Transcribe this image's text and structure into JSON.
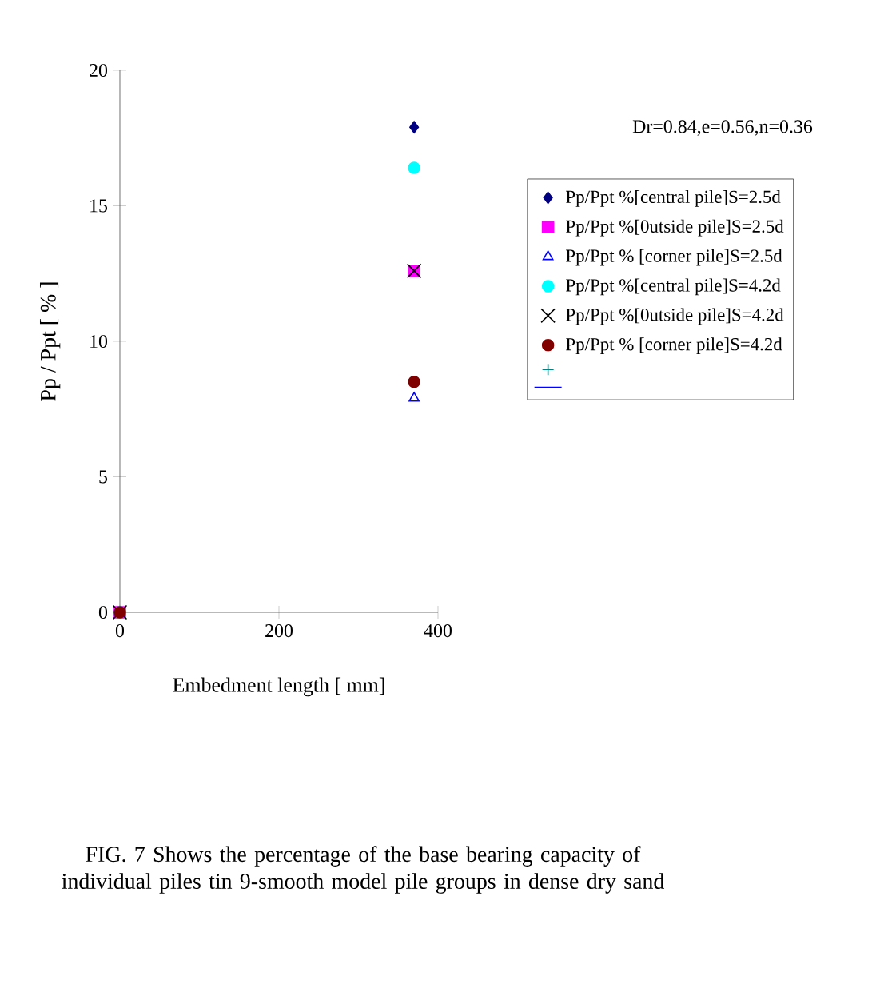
{
  "chart_data": {
    "type": "scatter",
    "xlabel": "Embedment length [ mm]",
    "ylabel": "Pp / Ppt [ % ]",
    "x": [
      0,
      370
    ],
    "series": [
      {
        "name": "Pp/Ppt %[central pile]S=2.5d",
        "color": "#000080",
        "marker": "diamond",
        "values": [
          null,
          17.9
        ]
      },
      {
        "name": "Pp/Ppt %[0utside pile]S=2.5d",
        "color": "#ff00ff",
        "marker": "square",
        "values": [
          0,
          12.6
        ]
      },
      {
        "name": "Pp/Ppt % [corner pile]S=2.5d",
        "color": "#0000ff",
        "marker": "triangle",
        "values": [
          0,
          7.9
        ]
      },
      {
        "name": "Pp/Ppt %[central pile]S=4.2d",
        "color": "#00ffff",
        "marker": "circle",
        "values": [
          0,
          16.4
        ]
      },
      {
        "name": "Pp/Ppt %[0utside pile]S=4.2d",
        "color": "#000000",
        "marker": "cross",
        "values": [
          0,
          12.6
        ]
      },
      {
        "name": "Pp/Ppt % [corner pile]S=4.2d",
        "color": "#800000",
        "marker": "circle",
        "values": [
          0,
          8.5
        ]
      },
      {
        "color": "#008080",
        "marker": "cross",
        "values": [
          null,
          null
        ]
      },
      {
        "type": "line",
        "color": "#0000ff",
        "marker": "none",
        "values": [
          null,
          null
        ]
      }
    ],
    "xlim": [
      0,
      400
    ],
    "xticks": [
      0,
      200,
      400
    ],
    "ylim": [
      0,
      20
    ],
    "yticks": [
      0,
      5,
      10,
      15,
      20
    ],
    "grid": false,
    "legend": "right",
    "annotations": [
      "Dr=0.84,e=0.56,n=0.36",
      "FIG. 7  Shows the percentage of the base bearing capacity of individual piles tin 9-smooth model pile groups in dense dry sand"
    ]
  }
}
